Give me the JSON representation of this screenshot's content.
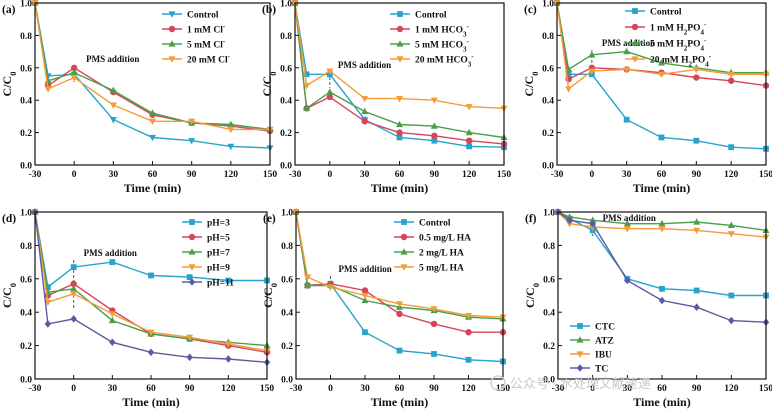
{
  "watermark": "公众号 · 水处理文献速递",
  "chart_data": [
    {
      "type": "line",
      "panel": "(a)",
      "xlabel": "Time (min)",
      "ylabel": "C/C0",
      "xlim": [
        -30,
        150
      ],
      "ylim": [
        0,
        1.0
      ],
      "xticks": [
        -30,
        0,
        30,
        60,
        90,
        120,
        150
      ],
      "yticks": [
        0.0,
        0.2,
        0.4,
        0.6,
        0.8,
        1.0
      ],
      "annotation": {
        "text": "PMS addition",
        "x": 0
      },
      "legend_position": "top-right",
      "series": [
        {
          "name": "Control",
          "legend": {
            "main": "Control"
          },
          "color": "#29a3cc",
          "marker": "triangle-down",
          "x": [
            -30,
            -20,
            0,
            30,
            60,
            90,
            120,
            150
          ],
          "y": [
            1.0,
            0.55,
            0.56,
            0.28,
            0.17,
            0.15,
            0.115,
            0.105
          ]
        },
        {
          "name": "1 mM Cl-",
          "legend": {
            "main": "1 mM Cl",
            "sup": "-"
          },
          "color": "#d6455a",
          "marker": "circle",
          "x": [
            -30,
            -20,
            0,
            30,
            60,
            90,
            120,
            150
          ],
          "y": [
            1.0,
            0.49,
            0.6,
            0.45,
            0.31,
            0.26,
            0.24,
            0.21
          ]
        },
        {
          "name": "5 mM Cl-",
          "legend": {
            "main": "5 mM Cl",
            "sup": "-"
          },
          "color": "#4aa04a",
          "marker": "triangle-up",
          "x": [
            -30,
            -20,
            0,
            30,
            60,
            90,
            120,
            150
          ],
          "y": [
            1.0,
            0.52,
            0.57,
            0.46,
            0.32,
            0.26,
            0.25,
            0.22
          ]
        },
        {
          "name": "20 mM Cl-",
          "legend": {
            "main": "20 mM Cl",
            "sup": "-"
          },
          "color": "#f39c3a",
          "marker": "triangle-down",
          "x": [
            -30,
            -20,
            0,
            30,
            60,
            90,
            120,
            150
          ],
          "y": [
            1.0,
            0.47,
            0.54,
            0.37,
            0.27,
            0.27,
            0.22,
            0.22
          ]
        }
      ]
    },
    {
      "type": "line",
      "panel": "(b)",
      "xlabel": "Time (min)",
      "ylabel": "C/C0",
      "xlim": [
        -30,
        150
      ],
      "ylim": [
        0,
        1.0
      ],
      "xticks": [
        -30,
        0,
        30,
        60,
        90,
        120,
        150
      ],
      "yticks": [
        0.0,
        0.2,
        0.4,
        0.6,
        0.8,
        1.0
      ],
      "annotation": {
        "text": "PMS addition",
        "x": 0
      },
      "legend_position": "top-right",
      "series": [
        {
          "name": "Control",
          "legend": {
            "main": "Control"
          },
          "color": "#29a3cc",
          "marker": "square",
          "x": [
            -30,
            -20,
            0,
            30,
            60,
            90,
            120,
            150
          ],
          "y": [
            1.0,
            0.56,
            0.56,
            0.28,
            0.17,
            0.15,
            0.115,
            0.11
          ]
        },
        {
          "name": "1 mM HCO3-",
          "legend": {
            "main": "1 mM HCO",
            "sub": "3",
            "sup": "-"
          },
          "color": "#d6455a",
          "marker": "circle",
          "x": [
            -30,
            -20,
            0,
            30,
            60,
            90,
            120,
            150
          ],
          "y": [
            1.0,
            0.35,
            0.42,
            0.27,
            0.2,
            0.18,
            0.15,
            0.13
          ]
        },
        {
          "name": "5 mM HCO3-",
          "legend": {
            "main": "5 mM HCO",
            "sub": "3",
            "sup": "-"
          },
          "color": "#4aa04a",
          "marker": "triangle-up",
          "x": [
            -30,
            -20,
            0,
            30,
            60,
            90,
            120,
            150
          ],
          "y": [
            1.0,
            0.35,
            0.45,
            0.33,
            0.25,
            0.24,
            0.2,
            0.17
          ]
        },
        {
          "name": "20 mM HCO3-",
          "legend": {
            "main": "20 mM HCO",
            "sub": "3",
            "sup": "-"
          },
          "color": "#f39c3a",
          "marker": "triangle-down",
          "x": [
            -30,
            -20,
            0,
            30,
            60,
            90,
            120,
            150
          ],
          "y": [
            1.0,
            0.49,
            0.58,
            0.41,
            0.41,
            0.4,
            0.36,
            0.35
          ]
        }
      ]
    },
    {
      "type": "line",
      "panel": "(c)",
      "xlabel": "Time (min)",
      "ylabel": "C/C0",
      "xlim": [
        -30,
        150
      ],
      "ylim": [
        0,
        1.0
      ],
      "xticks": [
        -30,
        0,
        30,
        60,
        90,
        120,
        150
      ],
      "yticks": [
        0.0,
        0.2,
        0.4,
        0.6,
        0.8,
        1.0
      ],
      "annotation": {
        "text": "PMS addition",
        "x": 0
      },
      "legend_position": "top-right",
      "series": [
        {
          "name": "Control",
          "legend": {
            "main": "Control"
          },
          "color": "#29a3cc",
          "marker": "square",
          "x": [
            -30,
            -20,
            0,
            30,
            60,
            90,
            120,
            150
          ],
          "y": [
            1.0,
            0.56,
            0.56,
            0.28,
            0.17,
            0.15,
            0.11,
            0.1
          ]
        },
        {
          "name": "1 mM H2PO4-",
          "legend": {
            "main": "1 mM H",
            "sub": "2",
            "main2": "PO",
            "sub2": "4",
            "sup": "-"
          },
          "color": "#d6455a",
          "marker": "circle",
          "x": [
            -30,
            -20,
            0,
            30,
            60,
            90,
            120,
            150
          ],
          "y": [
            1.0,
            0.53,
            0.6,
            0.59,
            0.57,
            0.54,
            0.52,
            0.49
          ]
        },
        {
          "name": "5 mM H2PO4-",
          "legend": {
            "main": "5 mM H",
            "sub": "2",
            "main2": "PO",
            "sub2": "4",
            "sup": "-"
          },
          "color": "#4aa04a",
          "marker": "triangle-up",
          "x": [
            -30,
            -20,
            0,
            30,
            60,
            90,
            120,
            150
          ],
          "y": [
            1.0,
            0.59,
            0.68,
            0.7,
            0.63,
            0.6,
            0.57,
            0.57
          ]
        },
        {
          "name": "20 mM H2PO4-",
          "legend": {
            "main": "20 mM H",
            "sub": "2",
            "main2": "PO",
            "sub2": "4",
            "sup": "-"
          },
          "color": "#f39c3a",
          "marker": "triangle-down",
          "x": [
            -30,
            -20,
            0,
            30,
            60,
            90,
            120,
            150
          ],
          "y": [
            1.0,
            0.47,
            0.58,
            0.59,
            0.56,
            0.59,
            0.56,
            0.56
          ]
        }
      ]
    },
    {
      "type": "line",
      "panel": "(d)",
      "xlabel": "Time (min)",
      "ylabel": "C/C0",
      "xlim": [
        -30,
        150
      ],
      "ylim": [
        0,
        1.0
      ],
      "xticks": [
        -30,
        0,
        30,
        60,
        90,
        120,
        150
      ],
      "yticks": [
        0.0,
        0.2,
        0.4,
        0.6,
        0.8,
        1.0
      ],
      "annotation": {
        "text": "PMS addition",
        "x": 0
      },
      "legend_position": "top-right",
      "series": [
        {
          "name": "pH=3",
          "legend": {
            "main": "pH=3"
          },
          "color": "#29a3cc",
          "marker": "square",
          "x": [
            -30,
            -20,
            0,
            30,
            60,
            90,
            120,
            150
          ],
          "y": [
            1.0,
            0.55,
            0.67,
            0.7,
            0.62,
            0.61,
            0.59,
            0.59
          ]
        },
        {
          "name": "pH=5",
          "legend": {
            "main": "pH=5"
          },
          "color": "#d6455a",
          "marker": "circle",
          "x": [
            -30,
            -20,
            0,
            30,
            60,
            90,
            120,
            150
          ],
          "y": [
            1.0,
            0.5,
            0.57,
            0.41,
            0.27,
            0.24,
            0.2,
            0.16
          ]
        },
        {
          "name": "pH=7",
          "legend": {
            "main": "pH=7"
          },
          "color": "#4aa04a",
          "marker": "triangle-up",
          "x": [
            -30,
            -20,
            0,
            30,
            60,
            90,
            120,
            150
          ],
          "y": [
            1.0,
            0.52,
            0.54,
            0.35,
            0.27,
            0.24,
            0.22,
            0.2
          ]
        },
        {
          "name": "pH=9",
          "legend": {
            "main": "pH=9"
          },
          "color": "#f39c3a",
          "marker": "triangle-down",
          "x": [
            -30,
            -20,
            0,
            30,
            60,
            90,
            120,
            150
          ],
          "y": [
            1.0,
            0.46,
            0.51,
            0.39,
            0.28,
            0.25,
            0.21,
            0.17
          ]
        },
        {
          "name": "pH=11",
          "legend": {
            "main": "pH=11"
          },
          "color": "#5b5ba3",
          "marker": "diamond",
          "x": [
            -30,
            -20,
            0,
            30,
            60,
            90,
            120,
            150
          ],
          "y": [
            1.0,
            0.33,
            0.36,
            0.22,
            0.16,
            0.13,
            0.12,
            0.1
          ]
        }
      ]
    },
    {
      "type": "line",
      "panel": "(e)",
      "xlabel": "Time (min)",
      "ylabel": "C/C0",
      "xlim": [
        -30,
        150
      ],
      "ylim": [
        0,
        1.0
      ],
      "xticks": [
        -30,
        0,
        30,
        60,
        90,
        120,
        150
      ],
      "yticks": [
        0.0,
        0.2,
        0.4,
        0.6,
        0.8,
        1.0
      ],
      "annotation": {
        "text": "PMS addition",
        "x": 0
      },
      "legend_position": "top-right",
      "series": [
        {
          "name": "Control",
          "legend": {
            "main": "Control"
          },
          "color": "#29a3cc",
          "marker": "square",
          "x": [
            -30,
            -20,
            0,
            30,
            60,
            90,
            120,
            150
          ],
          "y": [
            1.0,
            0.56,
            0.57,
            0.28,
            0.17,
            0.15,
            0.115,
            0.105
          ]
        },
        {
          "name": "0.5 mg/L HA",
          "legend": {
            "main": "0.5 mg/L HA"
          },
          "color": "#d6455a",
          "marker": "circle",
          "x": [
            -30,
            -20,
            0,
            30,
            60,
            90,
            120,
            150
          ],
          "y": [
            1.0,
            0.56,
            0.57,
            0.53,
            0.39,
            0.33,
            0.28,
            0.28
          ]
        },
        {
          "name": "2 mg/L HA",
          "legend": {
            "main": "2 mg/L HA"
          },
          "color": "#4aa04a",
          "marker": "triangle-up",
          "x": [
            -30,
            -20,
            0,
            30,
            60,
            90,
            120,
            150
          ],
          "y": [
            1.0,
            0.56,
            0.56,
            0.47,
            0.43,
            0.41,
            0.37,
            0.36
          ]
        },
        {
          "name": "5 mg/L HA",
          "legend": {
            "main": "5 mg/L HA"
          },
          "color": "#f39c3a",
          "marker": "triangle-down",
          "x": [
            -30,
            -20,
            0,
            30,
            60,
            90,
            120,
            150
          ],
          "y": [
            1.0,
            0.61,
            0.55,
            0.5,
            0.45,
            0.42,
            0.38,
            0.37
          ]
        }
      ]
    },
    {
      "type": "line",
      "panel": "(f)",
      "xlabel": "Time (min)",
      "ylabel": "C/C0",
      "xlim": [
        -30,
        150
      ],
      "ylim": [
        0,
        1.0
      ],
      "xticks": [
        -30,
        0,
        30,
        60,
        90,
        120,
        150
      ],
      "yticks": [
        0.0,
        0.2,
        0.4,
        0.6,
        0.8,
        1.0
      ],
      "annotation": {
        "text": "PMS addition",
        "x": 0
      },
      "legend_position": "bottom-left",
      "series": [
        {
          "name": "CTC",
          "legend": {
            "main": "CTC"
          },
          "color": "#29a3cc",
          "marker": "square",
          "x": [
            -30,
            -20,
            0,
            30,
            60,
            90,
            120,
            150
          ],
          "y": [
            1.0,
            0.96,
            0.89,
            0.6,
            0.54,
            0.53,
            0.5,
            0.5
          ]
        },
        {
          "name": "ATZ",
          "legend": {
            "main": "ATZ"
          },
          "color": "#4aa04a",
          "marker": "triangle-up",
          "x": [
            -30,
            -20,
            0,
            30,
            60,
            90,
            120,
            150
          ],
          "y": [
            1.0,
            0.97,
            0.95,
            0.93,
            0.93,
            0.94,
            0.92,
            0.89
          ]
        },
        {
          "name": "IBU",
          "legend": {
            "main": "IBU"
          },
          "color": "#f39c3a",
          "marker": "triangle-down",
          "x": [
            -30,
            -20,
            0,
            30,
            60,
            90,
            120,
            150
          ],
          "y": [
            1.0,
            0.93,
            0.91,
            0.9,
            0.9,
            0.89,
            0.87,
            0.85
          ]
        },
        {
          "name": "TC",
          "legend": {
            "main": "TC"
          },
          "color": "#5b5ba3",
          "marker": "diamond",
          "x": [
            -30,
            -20,
            0,
            30,
            60,
            90,
            120,
            150
          ],
          "y": [
            1.0,
            0.95,
            0.93,
            0.59,
            0.47,
            0.43,
            0.35,
            0.34
          ]
        }
      ]
    }
  ]
}
